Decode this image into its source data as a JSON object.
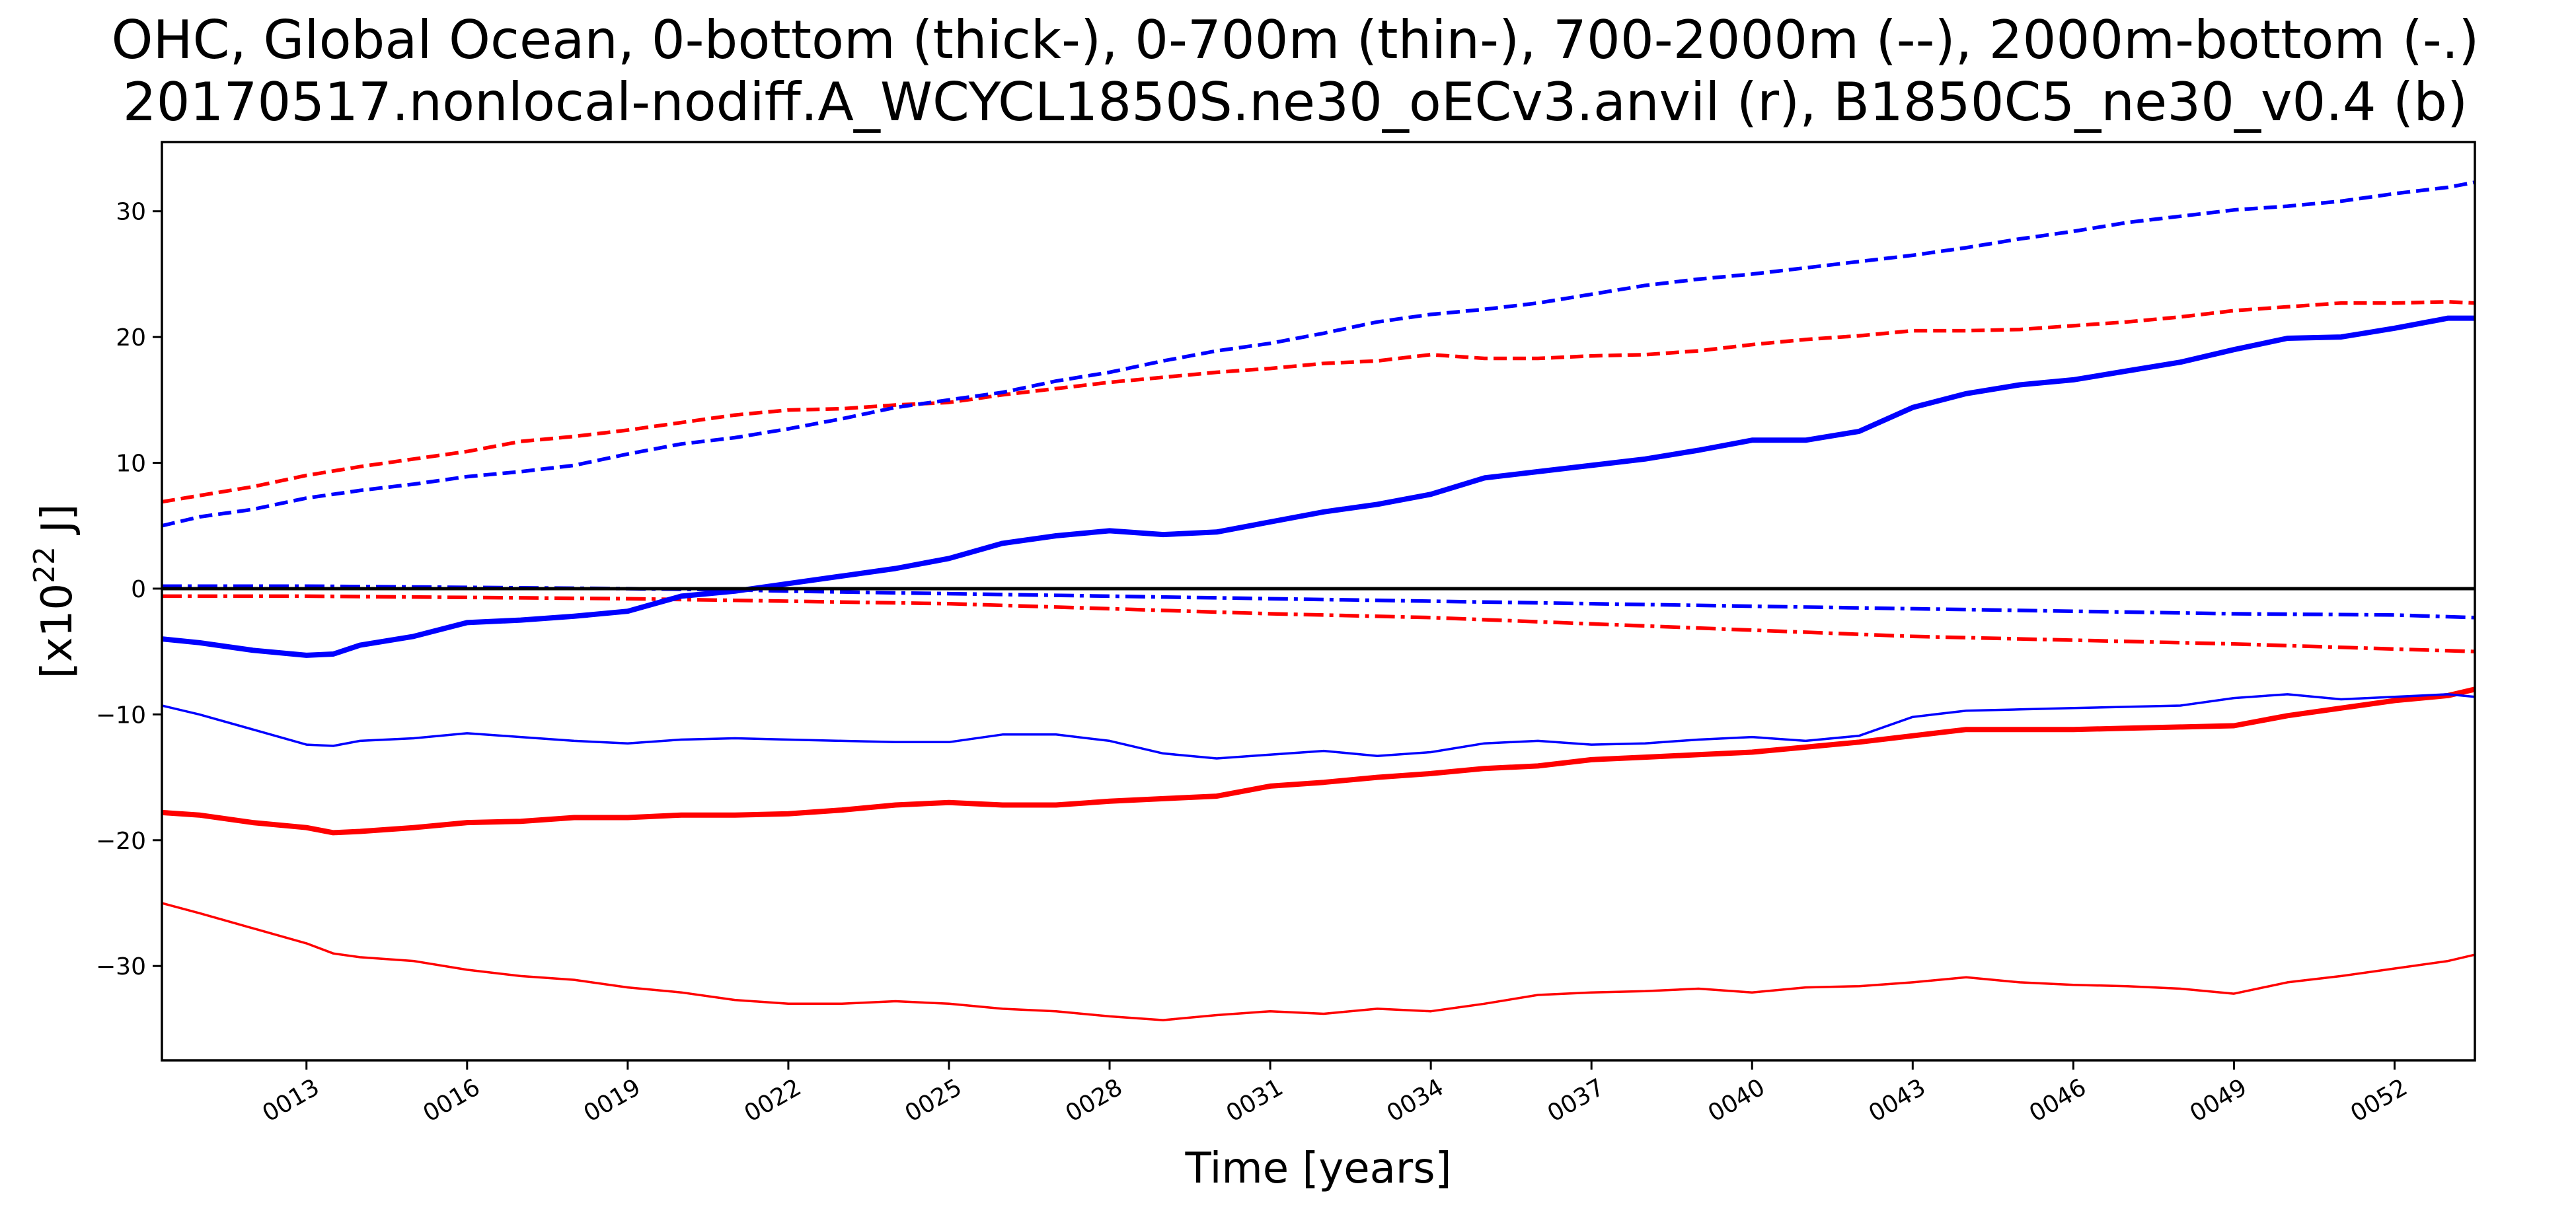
{
  "chart_data": {
    "type": "line",
    "title_line1": "OHC, Global Ocean, 0-bottom (thick-), 0-700m (thin-), 700-2000m (--), 2000m-bottom (-.)",
    "title_line2": "20170517.nonlocal-nodiff.A_WCYCL1850S.ne30_oECv3.anvil (r), B1850C5_ne30_v0.4 (b)",
    "xlabel": "Time [years]",
    "ylabel_prefix": "[x10",
    "ylabel_exp": "22",
    "ylabel_suffix": " J]",
    "xlim": [
      10.3,
      53.5
    ],
    "ylim": [
      -37.5,
      35.5
    ],
    "x_ticks": [
      13,
      16,
      19,
      22,
      25,
      28,
      31,
      34,
      37,
      40,
      43,
      46,
      49,
      52
    ],
    "x_tick_labels": [
      "0013",
      "0016",
      "0019",
      "0022",
      "0025",
      "0028",
      "0031",
      "0034",
      "0037",
      "0040",
      "0043",
      "0046",
      "0049",
      "0052"
    ],
    "y_ticks": [
      -30,
      -20,
      -10,
      0,
      10,
      20,
      30
    ],
    "y_tick_labels": [
      "−30",
      "−20",
      "−10",
      "0",
      "10",
      "20",
      "30"
    ],
    "zero_line": 0,
    "grid": false,
    "colors": {
      "red": "#ff0000",
      "blue": "#0000ff",
      "zero": "#000000"
    },
    "series": [
      {
        "color": "#ff0000",
        "style": "thick-solid",
        "x": [
          10.3,
          11,
          12,
          13,
          13.5,
          14,
          15,
          16,
          17,
          18,
          19,
          20,
          21,
          22,
          23,
          24,
          25,
          26,
          27,
          28,
          29,
          30,
          31,
          32,
          33,
          34,
          35,
          36,
          37,
          38,
          39,
          40,
          41,
          42,
          43,
          44,
          45,
          46,
          47,
          48,
          49,
          50,
          51,
          52,
          53,
          53.5
        ],
        "y": [
          -17.8,
          -18,
          -18.6,
          -19,
          -19.4,
          -19.3,
          -19,
          -18.6,
          -18.5,
          -18.2,
          -18.2,
          -18,
          -18,
          -17.9,
          -17.6,
          -17.2,
          -17,
          -17.2,
          -17.2,
          -16.9,
          -16.7,
          -16.5,
          -15.7,
          -15.4,
          -15,
          -14.7,
          -14.3,
          -14.1,
          -13.6,
          -13.4,
          -13.2,
          -13,
          -12.6,
          -12.2,
          -11.7,
          -11.2,
          -11.2,
          -11.2,
          -11.1,
          -11,
          -10.9,
          -10.1,
          -9.5,
          -8.9,
          -8.5,
          -8
        ]
      },
      {
        "color": "#ff0000",
        "style": "thin-solid",
        "x": [
          10.3,
          11,
          12,
          13,
          13.5,
          14,
          15,
          16,
          17,
          18,
          19,
          20,
          21,
          22,
          23,
          24,
          25,
          26,
          27,
          28,
          29,
          30,
          31,
          32,
          33,
          34,
          35,
          36,
          37,
          38,
          39,
          40,
          41,
          42,
          43,
          44,
          45,
          46,
          47,
          48,
          49,
          50,
          51,
          52,
          53,
          53.5
        ],
        "y": [
          -25,
          -25.8,
          -27,
          -28.2,
          -29,
          -29.3,
          -29.6,
          -30.3,
          -30.8,
          -31.1,
          -31.7,
          -32.1,
          -32.7,
          -33,
          -33,
          -32.8,
          -33,
          -33.4,
          -33.6,
          -34,
          -34.3,
          -33.9,
          -33.6,
          -33.8,
          -33.4,
          -33.6,
          -33,
          -32.3,
          -32.1,
          -32,
          -31.8,
          -32.1,
          -31.7,
          -31.6,
          -31.3,
          -30.9,
          -31.3,
          -31.5,
          -31.6,
          -31.8,
          -32.2,
          -31.3,
          -30.8,
          -30.2,
          -29.6,
          -29.1
        ]
      },
      {
        "color": "#ff0000",
        "style": "dashed",
        "x": [
          10.3,
          11,
          12,
          13,
          14,
          15,
          16,
          17,
          18,
          19,
          20,
          21,
          22,
          23,
          24,
          25,
          26,
          27,
          28,
          29,
          30,
          31,
          32,
          33,
          34,
          35,
          36,
          37,
          38,
          39,
          40,
          41,
          42,
          43,
          44,
          45,
          46,
          47,
          48,
          49,
          50,
          51,
          52,
          53,
          53.5
        ],
        "y": [
          6.9,
          7.4,
          8.1,
          9,
          9.7,
          10.3,
          10.9,
          11.7,
          12.1,
          12.6,
          13.2,
          13.8,
          14.2,
          14.3,
          14.6,
          14.8,
          15.4,
          15.9,
          16.4,
          16.8,
          17.2,
          17.5,
          17.9,
          18.1,
          18.6,
          18.3,
          18.3,
          18.5,
          18.6,
          18.9,
          19.4,
          19.8,
          20.1,
          20.5,
          20.5,
          20.6,
          20.9,
          21.2,
          21.6,
          22.1,
          22.4,
          22.7,
          22.7,
          22.8,
          22.7
        ]
      },
      {
        "color": "#ff0000",
        "style": "dashdot",
        "x": [
          10.3,
          13,
          16,
          19,
          22,
          25,
          28,
          31,
          34,
          37,
          40,
          43,
          46,
          49,
          52,
          53.5
        ],
        "y": [
          -0.6,
          -0.6,
          -0.7,
          -0.8,
          -1,
          -1.2,
          -1.6,
          -2,
          -2.3,
          -2.8,
          -3.3,
          -3.8,
          -4.1,
          -4.4,
          -4.8,
          -5
        ]
      },
      {
        "color": "#0000ff",
        "style": "thick-solid",
        "x": [
          10.3,
          11,
          12,
          13,
          13.5,
          14,
          15,
          16,
          17,
          18,
          19,
          20,
          21,
          22,
          23,
          24,
          25,
          26,
          27,
          28,
          29,
          30,
          31,
          32,
          33,
          34,
          35,
          36,
          37,
          38,
          39,
          40,
          41,
          42,
          43,
          44,
          45,
          46,
          47,
          48,
          49,
          50,
          51,
          52,
          53,
          53.5
        ],
        "y": [
          -4,
          -4.3,
          -4.9,
          -5.3,
          -5.2,
          -4.5,
          -3.8,
          -2.7,
          -2.5,
          -2.2,
          -1.8,
          -0.6,
          -0.2,
          0.4,
          1,
          1.6,
          2.4,
          3.6,
          4.2,
          4.6,
          4.3,
          4.5,
          5.3,
          6.1,
          6.7,
          7.5,
          8.8,
          9.3,
          9.8,
          10.3,
          11,
          11.8,
          11.8,
          12.5,
          14.4,
          15.5,
          16.2,
          16.6,
          17.3,
          18,
          19,
          19.9,
          20,
          20.7,
          21.5,
          21.5
        ]
      },
      {
        "color": "#0000ff",
        "style": "thin-solid",
        "x": [
          10.3,
          11,
          12,
          13,
          13.5,
          14,
          15,
          16,
          17,
          18,
          19,
          20,
          21,
          22,
          23,
          24,
          25,
          26,
          27,
          28,
          29,
          30,
          31,
          32,
          33,
          34,
          35,
          36,
          37,
          38,
          39,
          40,
          41,
          42,
          43,
          44,
          45,
          46,
          47,
          48,
          49,
          50,
          51,
          52,
          53,
          53.5
        ],
        "y": [
          -9.3,
          -10,
          -11.2,
          -12.4,
          -12.5,
          -12.1,
          -11.9,
          -11.5,
          -11.8,
          -12.1,
          -12.3,
          -12,
          -11.9,
          -12,
          -12.1,
          -12.2,
          -12.2,
          -11.6,
          -11.6,
          -12.1,
          -13.1,
          -13.5,
          -13.2,
          -12.9,
          -13.3,
          -13,
          -12.3,
          -12.1,
          -12.4,
          -12.3,
          -12,
          -11.8,
          -12.1,
          -11.7,
          -10.2,
          -9.7,
          -9.6,
          -9.5,
          -9.4,
          -9.3,
          -8.7,
          -8.4,
          -8.8,
          -8.6,
          -8.4,
          -8.6
        ]
      },
      {
        "color": "#0000ff",
        "style": "dashed",
        "x": [
          10.3,
          11,
          12,
          13,
          14,
          15,
          16,
          17,
          18,
          19,
          20,
          21,
          22,
          23,
          24,
          25,
          26,
          27,
          28,
          29,
          30,
          31,
          32,
          33,
          34,
          35,
          36,
          37,
          38,
          39,
          40,
          41,
          42,
          43,
          44,
          45,
          46,
          47,
          48,
          49,
          50,
          51,
          52,
          53,
          53.5
        ],
        "y": [
          5,
          5.7,
          6.3,
          7.2,
          7.8,
          8.3,
          8.9,
          9.3,
          9.8,
          10.7,
          11.5,
          12,
          12.7,
          13.5,
          14.4,
          15,
          15.6,
          16.5,
          17.2,
          18.1,
          18.9,
          19.5,
          20.3,
          21.2,
          21.8,
          22.2,
          22.7,
          23.4,
          24.1,
          24.6,
          25,
          25.5,
          26,
          26.5,
          27.1,
          27.8,
          28.4,
          29.1,
          29.6,
          30.1,
          30.4,
          30.8,
          31.4,
          31.9,
          32.3
        ]
      },
      {
        "color": "#0000ff",
        "style": "dashdot",
        "x": [
          10.3,
          13,
          16,
          19,
          21,
          22,
          25,
          28,
          31,
          34,
          37,
          40,
          43,
          46,
          49,
          52,
          53.5
        ],
        "y": [
          0.2,
          0.2,
          0.1,
          0,
          -0.1,
          -0.2,
          -0.4,
          -0.6,
          -0.8,
          -1,
          -1.2,
          -1.4,
          -1.6,
          -1.8,
          -2,
          -2.1,
          -2.3
        ]
      }
    ]
  }
}
